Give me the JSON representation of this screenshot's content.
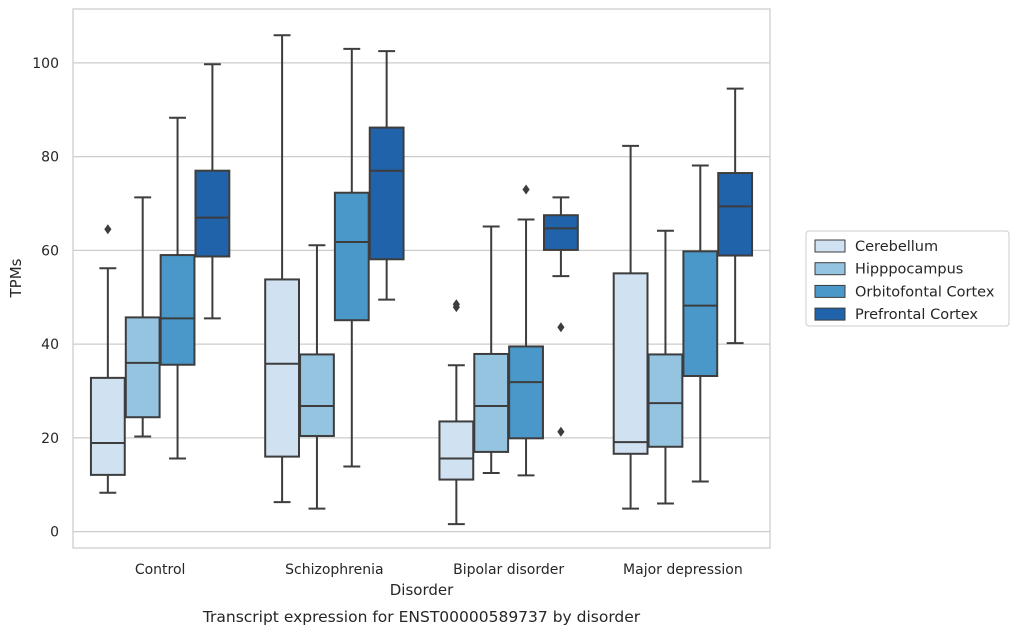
{
  "chart_data": {
    "type": "box",
    "title": "",
    "caption": "Transcript expression for ENST00000589737 by disorder",
    "xlabel": "Disorder",
    "ylabel": "TPMs",
    "ylim": [
      -3.5,
      111.5
    ],
    "yticks": [
      0,
      20,
      40,
      60,
      80,
      100
    ],
    "grid": "horizontal",
    "legend_position": "right",
    "categories": [
      "Control",
      "Schizophrenia",
      "Bipolar disorder",
      "Major depression"
    ],
    "series": [
      {
        "name": "Cerebellum",
        "color": "#d0e1f2",
        "boxes": [
          {
            "whisker_low": 8.3,
            "q1": 12.1,
            "median": 18.9,
            "q3": 32.8,
            "whisker_high": 56.2,
            "outliers": [
              64.5
            ]
          },
          {
            "whisker_low": 6.3,
            "q1": 16.0,
            "median": 35.8,
            "q3": 53.8,
            "whisker_high": 105.9,
            "outliers": []
          },
          {
            "whisker_low": 1.6,
            "q1": 11.1,
            "median": 15.6,
            "q3": 23.5,
            "whisker_high": 35.5,
            "outliers": [
              47.9,
              48.5
            ]
          },
          {
            "whisker_low": 4.9,
            "q1": 16.6,
            "median": 19.1,
            "q3": 55.1,
            "whisker_high": 82.3,
            "outliers": []
          }
        ]
      },
      {
        "name": "Hipppocampus",
        "color": "#94c4df",
        "boxes": [
          {
            "whisker_low": 20.3,
            "q1": 24.4,
            "median": 36.0,
            "q3": 45.7,
            "whisker_high": 71.3,
            "outliers": []
          },
          {
            "whisker_low": 4.9,
            "q1": 20.4,
            "median": 26.8,
            "q3": 37.8,
            "whisker_high": 61.1,
            "outliers": []
          },
          {
            "whisker_low": 12.5,
            "q1": 17.0,
            "median": 26.8,
            "q3": 37.9,
            "whisker_high": 65.1,
            "outliers": []
          },
          {
            "whisker_low": 6.0,
            "q1": 18.1,
            "median": 27.4,
            "q3": 37.8,
            "whisker_high": 64.2,
            "outliers": []
          }
        ]
      },
      {
        "name": "Orbitofontal Cortex",
        "color": "#4a98c9",
        "boxes": [
          {
            "whisker_low": 15.6,
            "q1": 35.6,
            "median": 45.5,
            "q3": 59.0,
            "whisker_high": 88.3,
            "outliers": []
          },
          {
            "whisker_low": 13.9,
            "q1": 45.1,
            "median": 61.8,
            "q3": 72.3,
            "whisker_high": 103.0,
            "outliers": []
          },
          {
            "whisker_low": 12.0,
            "q1": 19.9,
            "median": 31.9,
            "q3": 39.5,
            "whisker_high": 66.6,
            "outliers": [
              73.0
            ]
          },
          {
            "whisker_low": 10.7,
            "q1": 33.2,
            "median": 48.2,
            "q3": 59.8,
            "whisker_high": 78.1,
            "outliers": []
          }
        ]
      },
      {
        "name": "Prefrontal Cortex",
        "color": "#2163aa",
        "boxes": [
          {
            "whisker_low": 45.5,
            "q1": 58.7,
            "median": 67.0,
            "q3": 77.0,
            "whisker_high": 99.7,
            "outliers": []
          },
          {
            "whisker_low": 49.5,
            "q1": 58.1,
            "median": 77.0,
            "q3": 86.2,
            "whisker_high": 102.5,
            "outliers": []
          },
          {
            "whisker_low": 54.5,
            "q1": 60.1,
            "median": 64.7,
            "q3": 67.5,
            "whisker_high": 71.3,
            "outliers": [
              43.6,
              21.3
            ]
          },
          {
            "whisker_low": 40.2,
            "q1": 58.9,
            "median": 69.4,
            "q3": 76.5,
            "whisker_high": 94.5,
            "outliers": []
          }
        ]
      }
    ]
  }
}
